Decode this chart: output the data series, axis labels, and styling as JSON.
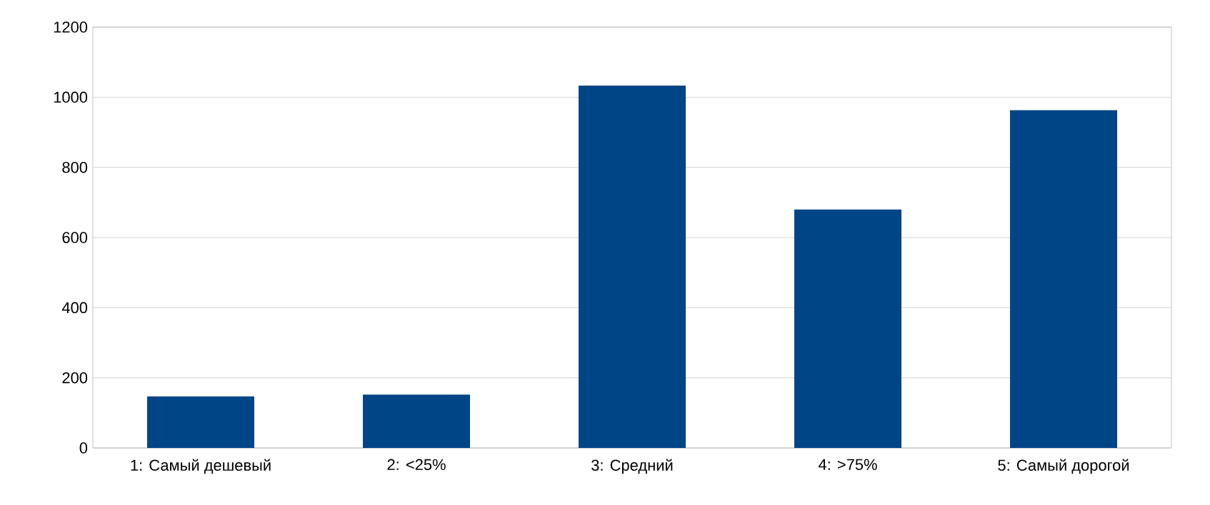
{
  "chart_data": {
    "type": "bar",
    "categories": [
      "1: Самый дешевый",
      "2: <25%",
      "3: Средний",
      "4: >75%",
      "5: Самый дорогой"
    ],
    "values": [
      147,
      152,
      1033,
      680,
      963
    ],
    "color": "#004586",
    "ylim": [
      0,
      1200
    ],
    "yticks": [
      0,
      200,
      400,
      600,
      800,
      1000,
      1200
    ],
    "grid": "y"
  }
}
